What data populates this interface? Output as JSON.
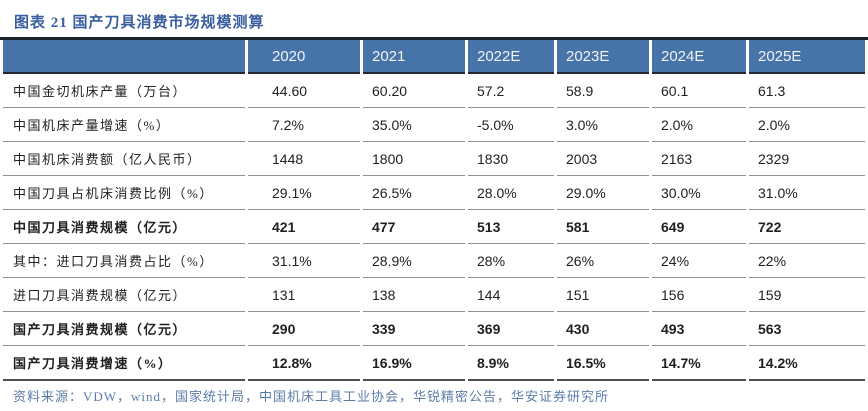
{
  "figure": {
    "title": "图表 21 国产刀具消费市场规模测算",
    "source": "资料来源：VDW，wind，国家统计局，中国机床工具工业协会，华锐精密公告，华安证券研究所"
  },
  "colors": {
    "title_color": "#3a5f9f",
    "header_bg": "#4673a8",
    "header_text": "#f2f4f7",
    "header_edge": "#242a35",
    "top_border": "#1b202a",
    "grid_line": "#8f8f8f",
    "bottom_border": "#4f4f4f",
    "source_color": "#5b7cab",
    "body_text": "#212121"
  },
  "chart_data": {
    "type": "table",
    "columns": [
      "",
      "2020",
      "2021",
      "2022E",
      "2023E",
      "2024E",
      "2025E"
    ],
    "rows": [
      {
        "label": "中国金切机床产量（万台）",
        "values": [
          "44.60",
          "60.20",
          "57.2",
          "58.9",
          "60.1",
          "61.3"
        ],
        "bold": false
      },
      {
        "label": "中国机床产量增速（%）",
        "values": [
          "7.2%",
          "35.0%",
          "-5.0%",
          "3.0%",
          "2.0%",
          "2.0%"
        ],
        "bold": false
      },
      {
        "label": "中国机床消费额（亿人民币）",
        "values": [
          "1448",
          "1800",
          "1830",
          "2003",
          "2163",
          "2329"
        ],
        "bold": false
      },
      {
        "label": "中国刀具占机床消费比例（%）",
        "values": [
          "29.1%",
          "26.5%",
          "28.0%",
          "29.0%",
          "30.0%",
          "31.0%"
        ],
        "bold": false
      },
      {
        "label": "中国刀具消费规模（亿元）",
        "values": [
          "421",
          "477",
          "513",
          "581",
          "649",
          "722"
        ],
        "bold": true
      },
      {
        "label": "其中：进口刀具消费占比（%）",
        "values": [
          "31.1%",
          "28.9%",
          "28%",
          "26%",
          "24%",
          "22%"
        ],
        "bold": false
      },
      {
        "label": "进口刀具消费规模（亿元）",
        "values": [
          "131",
          "138",
          "144",
          "151",
          "156",
          "159"
        ],
        "bold": false
      },
      {
        "label": "国产刀具消费规模（亿元）",
        "values": [
          "290",
          "339",
          "369",
          "430",
          "493",
          "563"
        ],
        "bold": true
      },
      {
        "label": "国产刀具消费增速（%）",
        "values": [
          "12.8%",
          "16.9%",
          "8.9%",
          "16.5%",
          "14.7%",
          "14.2%"
        ],
        "bold": true
      }
    ]
  }
}
